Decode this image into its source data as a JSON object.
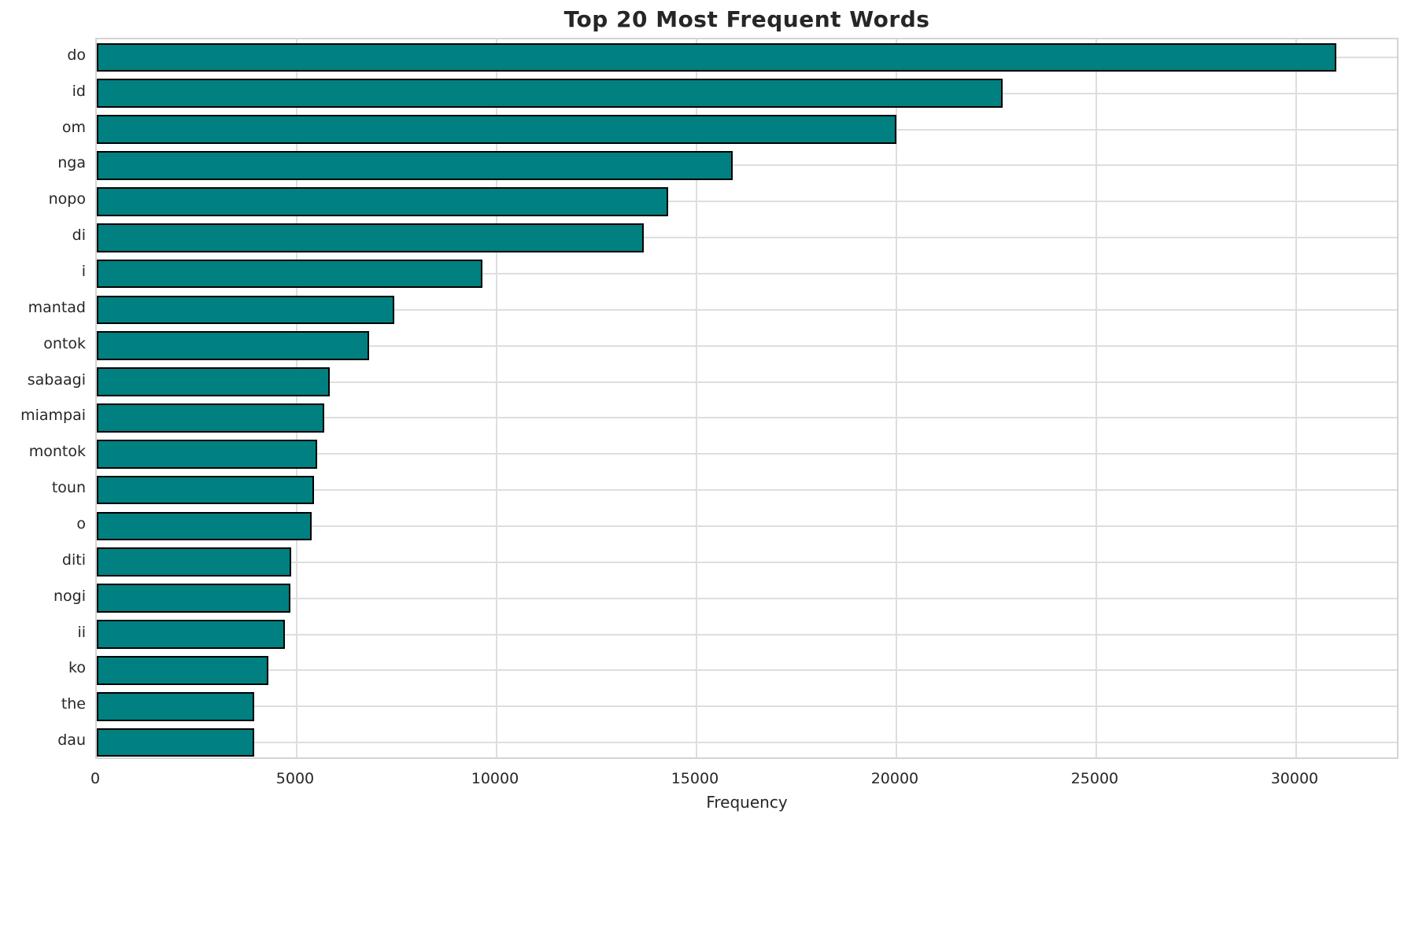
{
  "figure": {
    "background_color": "#ffffff"
  },
  "chart_data": {
    "type": "bar",
    "orientation": "horizontal",
    "title": "Top 20 Most Frequent Words",
    "xlabel": "Frequency",
    "ylabel": "",
    "categories": [
      "do",
      "id",
      "om",
      "nga",
      "nopo",
      "di",
      "i",
      "mantad",
      "ontok",
      "sabaagi",
      "miampai",
      "montok",
      "toun",
      "o",
      "diti",
      "nogi",
      "ii",
      "ko",
      "the",
      "dau"
    ],
    "values": [
      31000,
      22650,
      20000,
      15900,
      14290,
      13690,
      9640,
      7450,
      6810,
      5830,
      5690,
      5520,
      5440,
      5370,
      4870,
      4840,
      4710,
      4300,
      3945,
      3930
    ],
    "xlim": [
      0,
      32600
    ],
    "xticks": [
      0,
      5000,
      10000,
      15000,
      20000,
      25000,
      30000
    ],
    "grid": true,
    "legend": false,
    "bar_color": "#008080",
    "bar_edge_color": "#000000",
    "grid_color": "#dedede",
    "spine_color": "#d4d4d4",
    "text_color": "#262626"
  }
}
